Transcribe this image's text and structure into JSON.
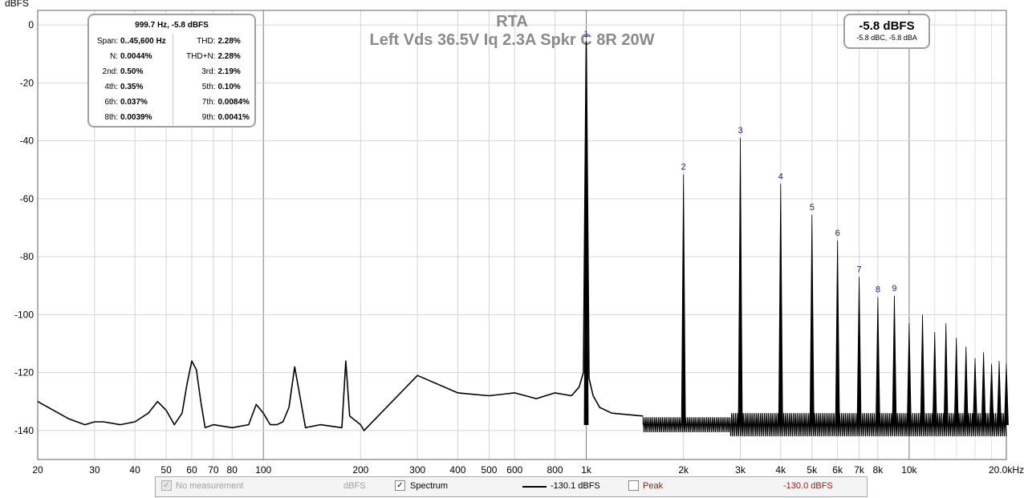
{
  "chart_data": {
    "type": "line",
    "title": "RTA",
    "subtitle": "Left Vds 36.5V Iq 2.3A Spkr C 8R 20W",
    "ylabel": "dBFS",
    "xlabel": "",
    "x_scale": "log",
    "xlim": [
      20,
      20000
    ],
    "ylim": [
      -150,
      5
    ],
    "grid": true,
    "x_ticks": [
      "20",
      "30",
      "40",
      "50",
      "60",
      "70",
      "80",
      "100",
      "200",
      "300",
      "400",
      "500",
      "600",
      "800",
      "1k",
      "2k",
      "3k",
      "4k",
      "5k",
      "6k",
      "7k",
      "8k",
      "10k",
      "20.0kHz"
    ],
    "y_ticks": [
      "0",
      "-20",
      "-40",
      "-60",
      "-80",
      "-100",
      "-120",
      "-140"
    ],
    "series": [
      {
        "name": "Spectrum",
        "color": "#000000",
        "noise_floor": -138,
        "x": [
          20,
          25,
          28,
          30,
          32,
          36,
          40,
          44,
          47,
          50,
          53,
          56,
          58,
          60,
          62,
          64,
          66,
          70,
          80,
          90,
          95,
          100,
          105,
          110,
          115,
          120,
          125,
          135,
          150,
          175,
          180,
          185,
          200,
          205,
          300,
          400,
          500,
          600,
          700,
          800,
          900,
          950,
          980,
          999.7,
          1020,
          1050,
          1100,
          1200,
          1500
        ],
        "values": [
          -130,
          -136,
          -138,
          -137,
          -137,
          -138,
          -137,
          -134,
          -130,
          -133,
          -138,
          -134,
          -124,
          -116,
          -119,
          -130,
          -139,
          -138,
          -139,
          -138,
          -131,
          -134,
          -138,
          -138,
          -137,
          -132,
          -118,
          -139,
          -138,
          -139,
          -116,
          -135,
          -138,
          -140,
          -121,
          -127,
          -128,
          -127,
          -129,
          -127,
          -128,
          -125,
          -120,
          -5.8,
          -122,
          -128,
          -132,
          -134,
          -135
        ]
      }
    ],
    "harmonics": [
      {
        "label": "1",
        "freq": 999.7,
        "level": -5.8
      },
      {
        "label": "2",
        "freq": 2000,
        "level": -51.6
      },
      {
        "label": "3",
        "freq": 3000,
        "level": -39
      },
      {
        "label": "4",
        "freq": 4000,
        "level": -54.9
      },
      {
        "label": "5",
        "freq": 5000,
        "level": -65.6
      },
      {
        "label": "6",
        "freq": 6000,
        "level": -74.4
      },
      {
        "label": "7",
        "freq": 7000,
        "level": -87
      },
      {
        "label": "8",
        "freq": 8000,
        "level": -94
      },
      {
        "label": "9",
        "freq": 9000,
        "level": -93.5
      }
    ],
    "higher_harmonics": [
      {
        "freq": 10000,
        "level": -103
      },
      {
        "freq": 11000,
        "level": -100
      },
      {
        "freq": 12000,
        "level": -106
      },
      {
        "freq": 13000,
        "level": -103
      },
      {
        "freq": 14000,
        "level": -108
      },
      {
        "freq": 15000,
        "level": -111
      },
      {
        "freq": 16000,
        "level": -115
      },
      {
        "freq": 17000,
        "level": -113
      },
      {
        "freq": 18000,
        "level": -117
      },
      {
        "freq": 19000,
        "level": -116
      },
      {
        "freq": 20000,
        "level": -117
      }
    ]
  },
  "thd_box": {
    "header": "999.7 Hz, -5.8 dBFS",
    "rows": [
      [
        {
          "k": "Span:",
          "v": "0..45,600 Hz"
        },
        {
          "k": "THD:",
          "v": "2.28%"
        }
      ],
      [
        {
          "k": "N:",
          "v": "0.0044%"
        },
        {
          "k": "THD+N:",
          "v": "2.28%"
        }
      ],
      [
        {
          "k": "2nd:",
          "v": "0.50%"
        },
        {
          "k": "3rd:",
          "v": "2.19%"
        }
      ],
      [
        {
          "k": "4th:",
          "v": "0.35%"
        },
        {
          "k": "5th:",
          "v": "0.10%"
        }
      ],
      [
        {
          "k": "6th:",
          "v": "0.037%"
        },
        {
          "k": "7th:",
          "v": "0.0084%"
        }
      ],
      [
        {
          "k": "8th:",
          "v": "0.0039%"
        },
        {
          "k": "9th:",
          "v": "0.0041%"
        }
      ]
    ]
  },
  "level_box": {
    "main": "-5.8 dBFS",
    "sub": "-5.8 dBC, -5.8 dBA"
  },
  "legend": {
    "no_measurement": "No measurement",
    "unit": "dBFS",
    "spectrum": "Spectrum",
    "spectrum_value": "-130.1 dBFS",
    "peak": "Peak",
    "peak_value": "-130.0 dBFS",
    "peak_color": "#8b1a1a",
    "spectrum_checked": "✓",
    "no_measurement_checked": "✓"
  }
}
